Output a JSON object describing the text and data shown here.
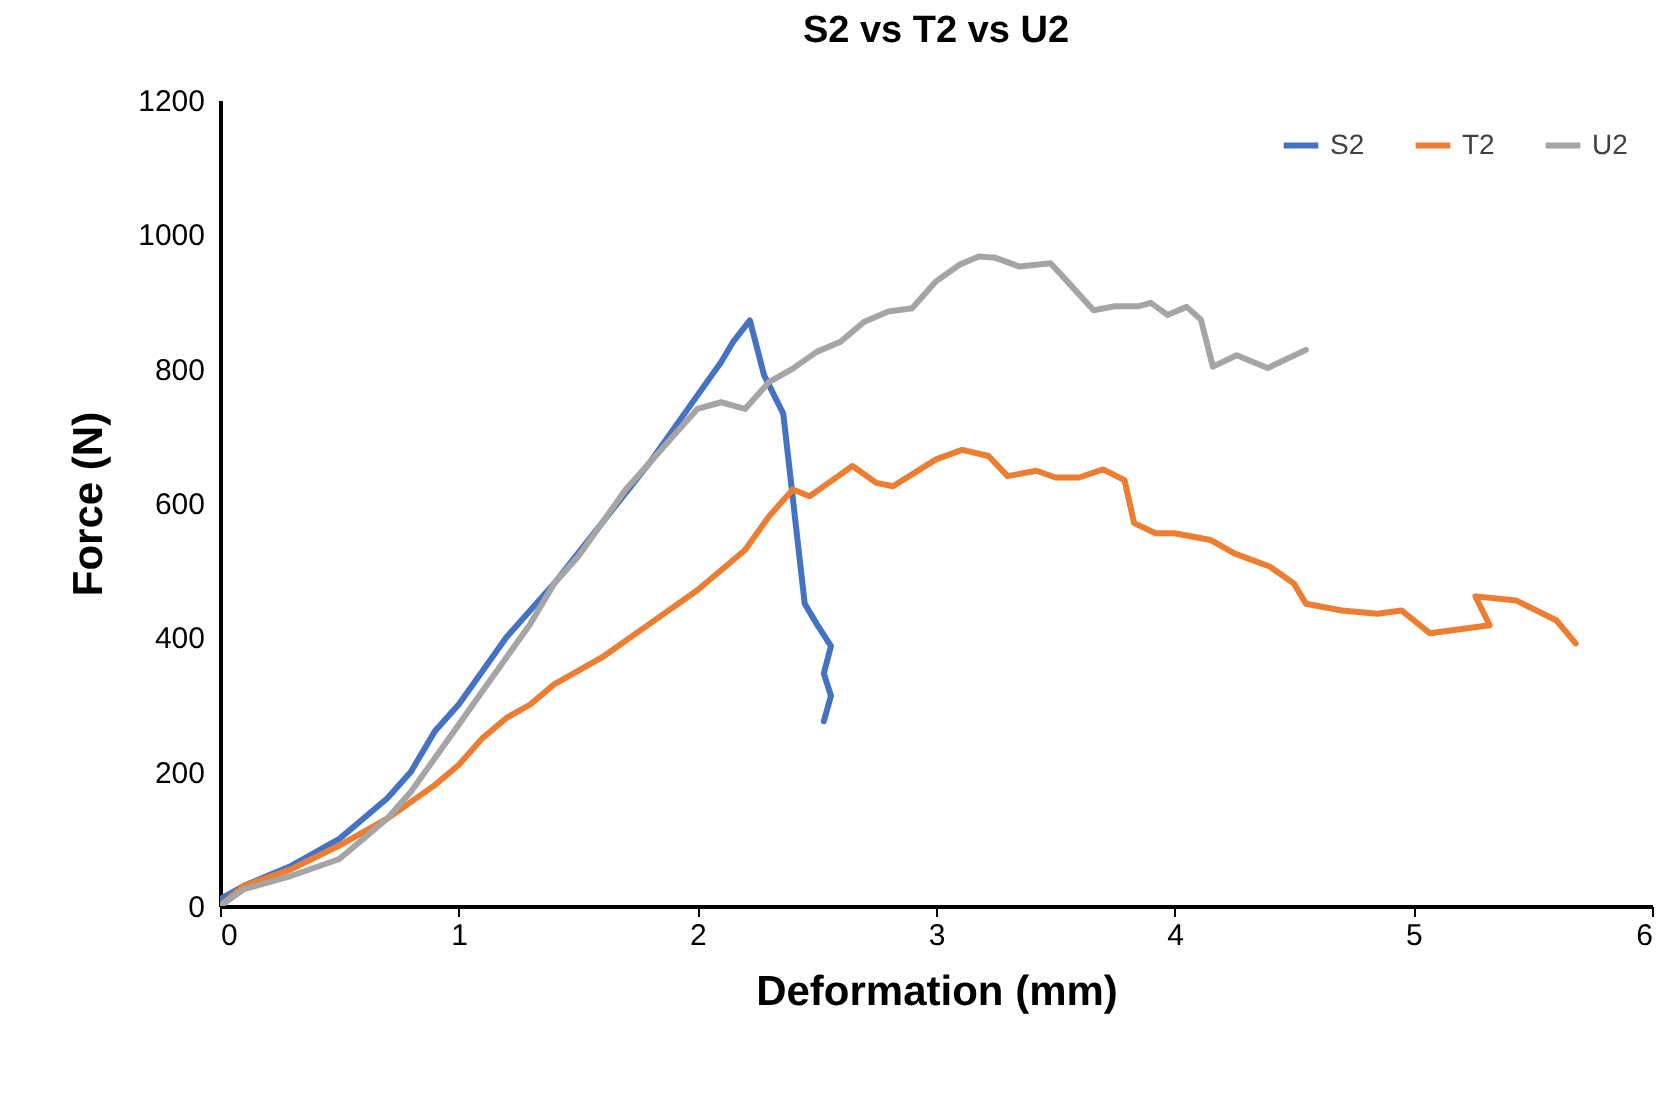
{
  "chart_data": {
    "type": "line",
    "title": "S2 vs T2 vs U2",
    "xlabel": "Deformation (mm)",
    "ylabel": "Force (N)",
    "xlim": [
      0,
      6
    ],
    "xticks": [
      0,
      1,
      2,
      3,
      4,
      5,
      6
    ],
    "ylim": [
      0,
      1200
    ],
    "yticks": [
      0,
      200,
      400,
      600,
      800,
      1000,
      1200
    ],
    "grid": false,
    "legend": "top right",
    "marker": "none",
    "line_style": "solid",
    "series": [
      {
        "name": "S2",
        "color": "#4472c4",
        "x": [
          0,
          0.1,
          0.3,
          0.5,
          0.7,
          0.8,
          0.9,
          1.0,
          1.1,
          1.2,
          1.4,
          1.6,
          1.8,
          1.9,
          2.0,
          2.1,
          2.15,
          2.22,
          2.28,
          2.36,
          2.45,
          2.5,
          2.56,
          2.53,
          2.56,
          2.53
        ],
        "values": [
          10,
          30,
          60,
          100,
          160,
          200,
          260,
          300,
          350,
          400,
          480,
          570,
          660,
          710,
          760,
          810,
          840,
          872,
          790,
          733,
          450,
          420,
          387,
          346,
          313,
          275
        ]
      },
      {
        "name": "T2",
        "color": "#ed7d31",
        "x": [
          0,
          0.1,
          0.3,
          0.5,
          0.7,
          0.9,
          1.0,
          1.1,
          1.2,
          1.3,
          1.4,
          1.6,
          1.8,
          2.0,
          2.2,
          2.3,
          2.4,
          2.47,
          2.55,
          2.65,
          2.75,
          2.82,
          3.0,
          3.11,
          3.22,
          3.3,
          3.42,
          3.5,
          3.6,
          3.7,
          3.79,
          3.83,
          3.92,
          4.0,
          4.15,
          4.25,
          4.4,
          4.5,
          4.55,
          4.7,
          4.85,
          4.95,
          5.07,
          5.32,
          5.26,
          5.43,
          5.6,
          5.68
        ],
        "values": [
          0,
          30,
          55,
          90,
          130,
          180,
          210,
          250,
          280,
          300,
          330,
          370,
          420,
          470,
          530,
          580,
          620,
          610,
          630,
          655,
          630,
          625,
          665,
          679,
          670,
          640,
          648,
          638,
          638,
          650,
          634,
          570,
          555,
          555,
          545,
          525,
          505,
          480,
          450,
          440,
          435,
          440,
          406,
          418,
          461,
          455,
          425,
          391
        ]
      },
      {
        "name": "U2",
        "color": "#a5a5a5",
        "x": [
          0,
          0.1,
          0.3,
          0.5,
          0.6,
          0.7,
          0.8,
          0.9,
          1.0,
          1.1,
          1.2,
          1.3,
          1.4,
          1.5,
          1.6,
          1.7,
          1.8,
          1.9,
          2.0,
          2.1,
          2.2,
          2.3,
          2.4,
          2.5,
          2.6,
          2.7,
          2.8,
          2.9,
          3.0,
          3.1,
          3.18,
          3.25,
          3.35,
          3.48,
          3.55,
          3.66,
          3.75,
          3.85,
          3.9,
          3.97,
          4.05,
          4.11,
          4.16,
          4.26,
          4.39,
          4.55
        ],
        "values": [
          0,
          25,
          45,
          70,
          100,
          130,
          170,
          220,
          270,
          320,
          370,
          420,
          480,
          520,
          570,
          620,
          660,
          700,
          740,
          750,
          740,
          780,
          800,
          825,
          840,
          870,
          885,
          890,
          930,
          955,
          967,
          965,
          952,
          957,
          930,
          887,
          893,
          893,
          898,
          880,
          892,
          873,
          803,
          820,
          801,
          828
        ]
      }
    ]
  }
}
